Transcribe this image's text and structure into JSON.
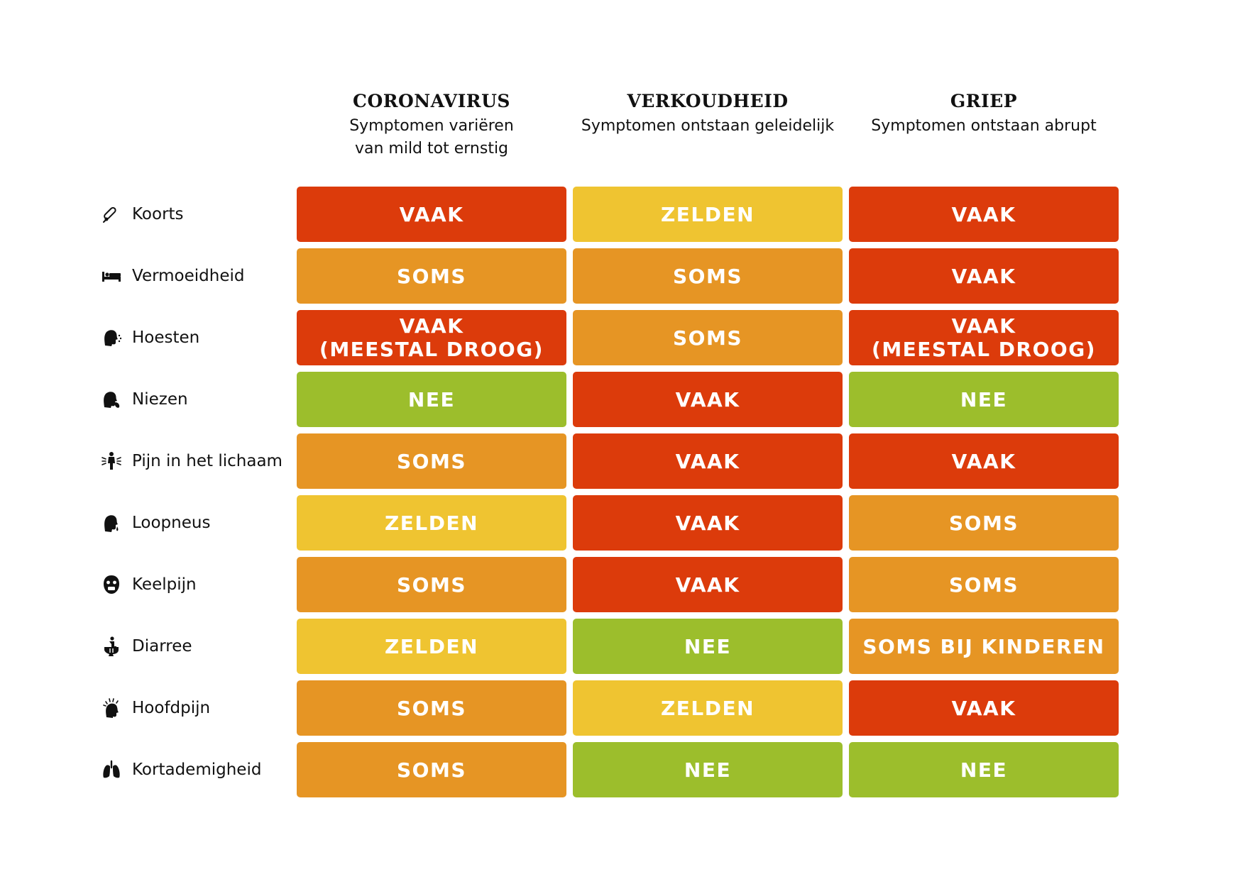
{
  "colors": {
    "VAAK": "#dc3b0b",
    "SOMS": "#e69524",
    "ZELDEN": "#efc431",
    "NEE": "#9cbe2c"
  },
  "columns": [
    {
      "title": "CORONAVIRUS",
      "subtitle": "Symptomen variëren\nvan mild tot ernstig"
    },
    {
      "title": "VERKOUDHEID",
      "subtitle": "Symptomen ontstaan geleidelijk"
    },
    {
      "title": "GRIEP",
      "subtitle": "Symptomen ontstaan abrupt"
    }
  ],
  "rows": [
    {
      "label": "Koorts",
      "icon": "thermometer-icon",
      "cells": [
        {
          "text": "VAAK",
          "level": "VAAK"
        },
        {
          "text": "ZELDEN",
          "level": "ZELDEN"
        },
        {
          "text": "VAAK",
          "level": "VAAK"
        }
      ]
    },
    {
      "label": "Vermoeidheid",
      "icon": "bed-icon",
      "cells": [
        {
          "text": "SOMS",
          "level": "SOMS"
        },
        {
          "text": "SOMS",
          "level": "SOMS"
        },
        {
          "text": "VAAK",
          "level": "VAAK"
        }
      ]
    },
    {
      "label": "Hoesten",
      "icon": "cough-icon",
      "cells": [
        {
          "text": "VAAK\n(MEESTAL DROOG)",
          "level": "VAAK"
        },
        {
          "text": "SOMS",
          "level": "SOMS"
        },
        {
          "text": "VAAK\n(MEESTAL DROOG)",
          "level": "VAAK"
        }
      ]
    },
    {
      "label": "Niezen",
      "icon": "sneeze-icon",
      "cells": [
        {
          "text": "NEE",
          "level": "NEE"
        },
        {
          "text": "VAAK",
          "level": "VAAK"
        },
        {
          "text": "NEE",
          "level": "NEE"
        }
      ]
    },
    {
      "label": "Pijn in het lichaam",
      "icon": "body-pain-icon",
      "cells": [
        {
          "text": "SOMS",
          "level": "SOMS"
        },
        {
          "text": "VAAK",
          "level": "VAAK"
        },
        {
          "text": "VAAK",
          "level": "VAAK"
        }
      ]
    },
    {
      "label": "Loopneus",
      "icon": "runny-nose-icon",
      "cells": [
        {
          "text": "ZELDEN",
          "level": "ZELDEN"
        },
        {
          "text": "VAAK",
          "level": "VAAK"
        },
        {
          "text": "SOMS",
          "level": "SOMS"
        }
      ]
    },
    {
      "label": "Keelpijn",
      "icon": "sore-throat-icon",
      "cells": [
        {
          "text": "SOMS",
          "level": "SOMS"
        },
        {
          "text": "VAAK",
          "level": "VAAK"
        },
        {
          "text": "SOMS",
          "level": "SOMS"
        }
      ]
    },
    {
      "label": "Diarree",
      "icon": "toilet-icon",
      "cells": [
        {
          "text": "ZELDEN",
          "level": "ZELDEN"
        },
        {
          "text": "NEE",
          "level": "NEE"
        },
        {
          "text": "SOMS BIJ KINDEREN",
          "level": "SOMS"
        }
      ]
    },
    {
      "label": "Hoofdpijn",
      "icon": "headache-icon",
      "cells": [
        {
          "text": "SOMS",
          "level": "SOMS"
        },
        {
          "text": "ZELDEN",
          "level": "ZELDEN"
        },
        {
          "text": "VAAK",
          "level": "VAAK"
        }
      ]
    },
    {
      "label": "Kortademigheid",
      "icon": "lungs-icon",
      "cells": [
        {
          "text": "SOMS",
          "level": "SOMS"
        },
        {
          "text": "NEE",
          "level": "NEE"
        },
        {
          "text": "NEE",
          "level": "NEE"
        }
      ]
    }
  ]
}
